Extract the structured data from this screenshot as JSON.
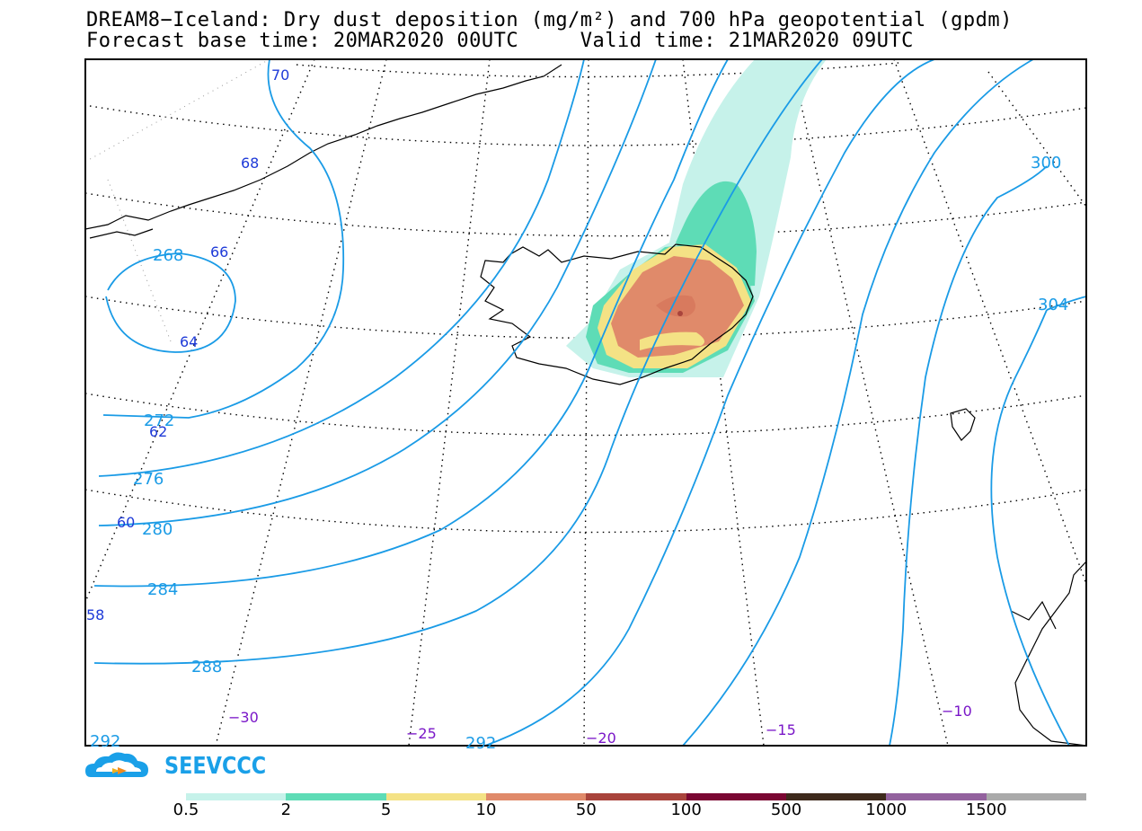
{
  "header": {
    "title_line1": "DREAM8−Iceland: Dry dust deposition (mg/m²) and 700 hPa geopotential (gpdm)",
    "title_line2": "Forecast base time: 20MAR2020 00UTC     Valid time: 21MAR2020 09UTC"
  },
  "map": {
    "latitude_labels": [
      "70",
      "68",
      "66",
      "64",
      "62",
      "60",
      "58"
    ],
    "longitude_labels": [
      "−30",
      "−25",
      "−20",
      "−15",
      "−10"
    ],
    "contour_labels": [
      "268",
      "272",
      "276",
      "280",
      "284",
      "288",
      "292",
      "292",
      "300",
      "304"
    ],
    "colors": {
      "contour": "#1a9be6",
      "latitude_label": "#1e3ad8",
      "longitude_label": "#7a17c8"
    }
  },
  "logo": {
    "text": "SEEVCCC",
    "icon": "cloud-icon",
    "color": "#1aa0e8"
  },
  "legend": {
    "colors": [
      "#c6f2ea",
      "#5edcb6",
      "#f4e285",
      "#e08a6a",
      "#a9443c",
      "#7a0632",
      "#3e2a1c",
      "#93629e",
      "#aaaaaa"
    ],
    "labels": [
      "0.5",
      "2",
      "5",
      "10",
      "50",
      "100",
      "500",
      "1000",
      "1500"
    ]
  }
}
